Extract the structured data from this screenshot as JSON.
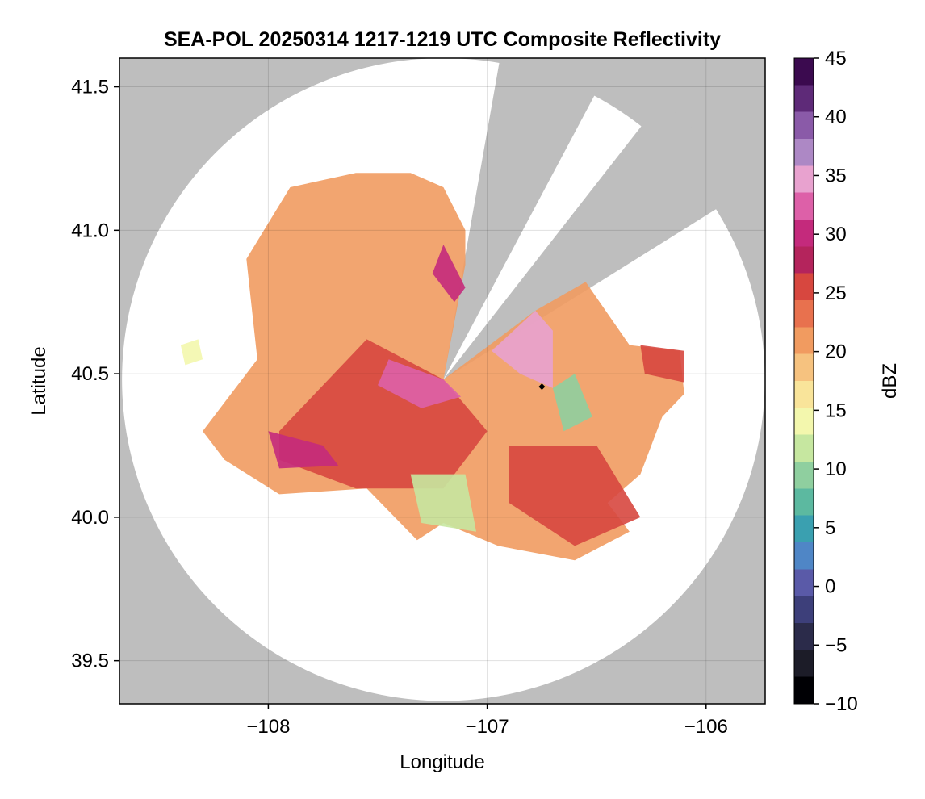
{
  "chart_data": {
    "type": "heatmap",
    "title": "SEA-POL 20250314 1217-1219 UTC Composite Reflectivity",
    "xlabel": "Longitude",
    "ylabel": "Latitude",
    "xlim": [
      -108.68,
      -105.73
    ],
    "ylim": [
      39.35,
      41.6
    ],
    "x_ticks": [
      -108,
      -107,
      -106
    ],
    "x_tick_labels": [
      "−108",
      "−107",
      "−106"
    ],
    "y_ticks": [
      39.5,
      40.0,
      40.5,
      41.0,
      41.5
    ],
    "y_tick_labels": [
      "39.5",
      "40.0",
      "40.5",
      "41.0",
      "41.5"
    ],
    "grid": true,
    "background_color": "#bebebe",
    "radar": {
      "center": [
        -107.2,
        40.48
      ],
      "max_range_lat_deg": 1.12,
      "blocked_sectors": [
        {
          "from_bearing_deg": 10,
          "to_bearing_deg": 28
        },
        {
          "from_bearing_deg": 38,
          "to_bearing_deg": 58
        }
      ]
    },
    "site_marker": {
      "lon": -106.75,
      "lat": 40.455,
      "symbol": "diamond"
    },
    "precip_regions": [
      {
        "name": "main-echo",
        "dbz": 20,
        "points": [
          [
            -108.3,
            40.3
          ],
          [
            -108.05,
            40.55
          ],
          [
            -108.1,
            40.9
          ],
          [
            -107.9,
            41.15
          ],
          [
            -107.6,
            41.2
          ],
          [
            -107.35,
            41.2
          ],
          [
            -107.2,
            41.15
          ],
          [
            -107.1,
            41.0
          ],
          [
            -107.1,
            40.88
          ],
          [
            -107.2,
            40.48
          ],
          [
            -106.78,
            40.72
          ],
          [
            -106.55,
            40.82
          ],
          [
            -106.35,
            40.6
          ],
          [
            -106.12,
            40.58
          ],
          [
            -106.1,
            40.43
          ],
          [
            -106.2,
            40.35
          ],
          [
            -106.3,
            40.15
          ],
          [
            -106.45,
            40.05
          ],
          [
            -106.35,
            39.95
          ],
          [
            -106.6,
            39.85
          ],
          [
            -106.95,
            39.9
          ],
          [
            -107.2,
            39.98
          ],
          [
            -107.32,
            39.92
          ],
          [
            -107.55,
            40.1
          ],
          [
            -107.95,
            40.08
          ],
          [
            -108.2,
            40.2
          ],
          [
            -108.3,
            40.3
          ]
        ]
      },
      {
        "name": "west-lobe",
        "dbz": 14,
        "points": [
          [
            -108.4,
            40.6
          ],
          [
            -108.32,
            40.62
          ],
          [
            -108.3,
            40.55
          ],
          [
            -108.38,
            40.53
          ]
        ]
      },
      {
        "name": "central-core",
        "dbz": 26,
        "points": [
          [
            -107.95,
            40.3
          ],
          [
            -107.55,
            40.62
          ],
          [
            -107.2,
            40.48
          ],
          [
            -107.0,
            40.3
          ],
          [
            -107.2,
            40.1
          ],
          [
            -107.6,
            40.1
          ],
          [
            -107.95,
            40.2
          ]
        ]
      },
      {
        "name": "southwest-band",
        "dbz": 31,
        "points": [
          [
            -108.0,
            40.3
          ],
          [
            -107.75,
            40.25
          ],
          [
            -107.68,
            40.18
          ],
          [
            -107.95,
            40.17
          ]
        ]
      },
      {
        "name": "central-intense",
        "dbz": 33,
        "points": [
          [
            -107.45,
            40.55
          ],
          [
            -107.2,
            40.48
          ],
          [
            -107.12,
            40.42
          ],
          [
            -107.3,
            40.38
          ],
          [
            -107.5,
            40.46
          ]
        ]
      },
      {
        "name": "northeast-core",
        "dbz": 34,
        "points": [
          [
            -106.98,
            40.58
          ],
          [
            -106.78,
            40.72
          ],
          [
            -106.7,
            40.65
          ],
          [
            -106.7,
            40.45
          ],
          [
            -106.85,
            40.5
          ]
        ]
      },
      {
        "name": "northern-streak",
        "dbz": 30,
        "points": [
          [
            -107.2,
            40.95
          ],
          [
            -107.1,
            40.8
          ],
          [
            -107.15,
            40.75
          ],
          [
            -107.25,
            40.85
          ]
        ]
      },
      {
        "name": "southeast-core",
        "dbz": 26,
        "points": [
          [
            -106.9,
            40.25
          ],
          [
            -106.5,
            40.25
          ],
          [
            -106.3,
            40.0
          ],
          [
            -106.6,
            39.9
          ],
          [
            -106.9,
            40.05
          ]
        ]
      },
      {
        "name": "east-cell",
        "dbz": 25,
        "points": [
          [
            -106.3,
            40.6
          ],
          [
            -106.1,
            40.58
          ],
          [
            -106.1,
            40.47
          ],
          [
            -106.28,
            40.5
          ]
        ]
      },
      {
        "name": "east-clear-pocket",
        "dbz": 9,
        "points": [
          [
            -106.7,
            40.45
          ],
          [
            -106.6,
            40.5
          ],
          [
            -106.52,
            40.35
          ],
          [
            -106.65,
            40.3
          ]
        ]
      },
      {
        "name": "south-clear-pocket",
        "dbz": 11,
        "points": [
          [
            -107.35,
            40.15
          ],
          [
            -107.1,
            40.15
          ],
          [
            -107.05,
            39.95
          ],
          [
            -107.3,
            39.98
          ]
        ]
      }
    ],
    "colorbar": {
      "label": "dBZ",
      "min": -10,
      "max": 45,
      "ticks": [
        -10,
        -5,
        0,
        5,
        10,
        15,
        20,
        25,
        30,
        35,
        40,
        45
      ],
      "tick_labels": [
        "−10",
        "−5",
        "0",
        "5",
        "10",
        "15",
        "20",
        "25",
        "30",
        "35",
        "40",
        "45"
      ],
      "colors": [
        "#000004",
        "#1c1c28",
        "#2b2b4a",
        "#3d3f7a",
        "#5a5aa8",
        "#4f86c6",
        "#3aa0b0",
        "#5cb9a0",
        "#8fcf9f",
        "#c6e7a0",
        "#f3f7ad",
        "#f9e49a",
        "#f6c27f",
        "#f19b60",
        "#e8714e",
        "#d7473f",
        "#b4245c",
        "#c42a7c",
        "#dd60a8",
        "#e8a2cf",
        "#ad88c5",
        "#8a5aa8",
        "#5e2a78",
        "#3b0a4f"
      ]
    }
  }
}
